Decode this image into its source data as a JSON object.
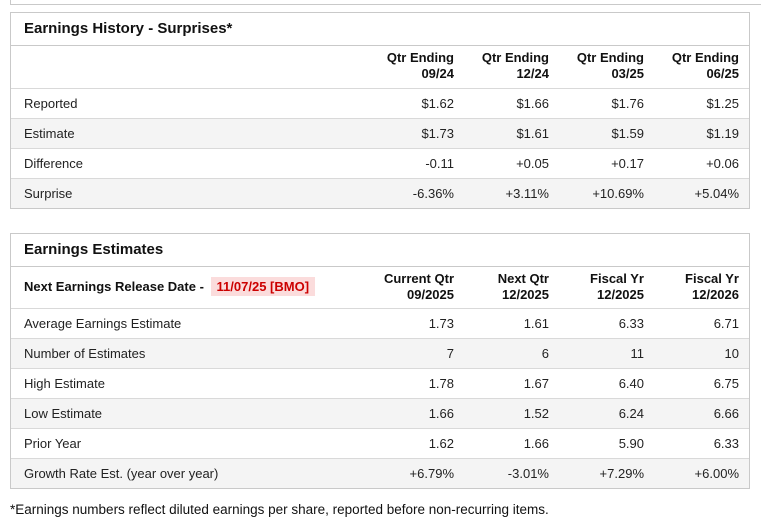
{
  "colors": {
    "positive_value": "#107e6a",
    "negative_value": "#cc3333",
    "release_date_text": "#cc0000",
    "release_date_background": "#fbdcdc",
    "row_stripe": "#f4f4f4",
    "border": "#c9c9c9"
  },
  "history": {
    "title": "Earnings History - Surprises*",
    "columns": [
      "Qtr Ending\n09/24",
      "Qtr Ending\n12/24",
      "Qtr Ending\n03/25",
      "Qtr Ending\n06/25"
    ],
    "rows": [
      {
        "label": "Reported",
        "values": [
          "$1.62",
          "$1.66",
          "$1.76",
          "$1.25"
        ]
      },
      {
        "label": "Estimate",
        "values": [
          "$1.73",
          "$1.61",
          "$1.59",
          "$1.19"
        ]
      },
      {
        "label": "Difference",
        "values": [
          "-0.11",
          "+0.05",
          "+0.17",
          "+0.06"
        ]
      },
      {
        "label": "Surprise",
        "values": [
          "-6.36%",
          "+3.11%",
          "+10.69%",
          "+5.04%"
        ]
      }
    ]
  },
  "estimates": {
    "title": "Earnings Estimates",
    "release_label": "Next Earnings Release Date - ",
    "release_date": "11/07/25 [BMO]",
    "columns": [
      "Current Qtr\n09/2025",
      "Next Qtr\n12/2025",
      "Fiscal Yr\n12/2025",
      "Fiscal Yr\n12/2026"
    ],
    "rows": [
      {
        "label": "Average Earnings Estimate",
        "values": [
          "1.73",
          "1.61",
          "6.33",
          "6.71"
        ]
      },
      {
        "label": "Number of Estimates",
        "values": [
          "7",
          "6",
          "11",
          "10"
        ]
      },
      {
        "label": "High Estimate",
        "values": [
          "1.78",
          "1.67",
          "6.40",
          "6.75"
        ]
      },
      {
        "label": "Low Estimate",
        "values": [
          "1.66",
          "1.52",
          "6.24",
          "6.66"
        ]
      },
      {
        "label": "Prior Year",
        "values": [
          "1.62",
          "1.66",
          "5.90",
          "6.33"
        ]
      },
      {
        "label": "Growth Rate Est. (year over year)",
        "values": [
          "+6.79%",
          "-3.01%",
          "+7.29%",
          "+6.00%"
        ]
      }
    ]
  },
  "footnote": "*Earnings numbers reflect diluted earnings per share, reported before non-recurring items."
}
